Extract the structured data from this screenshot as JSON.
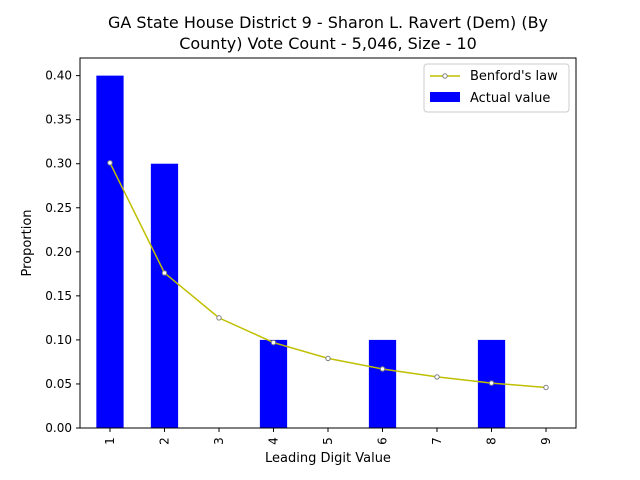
{
  "chart_data": {
    "type": "bar",
    "title_lines": [
      "GA State House District 9 - Sharon L. Ravert (Dem) (By",
      "County) Vote Count - 5,046, Size - 10"
    ],
    "xlabel": "Leading Digit Value",
    "ylabel": "Proportion",
    "categories": [
      "1",
      "2",
      "3",
      "4",
      "5",
      "6",
      "7",
      "8",
      "9"
    ],
    "ylim": [
      0,
      0.42
    ],
    "yticks": [
      "0.00",
      "0.05",
      "0.10",
      "0.15",
      "0.20",
      "0.25",
      "0.30",
      "0.35",
      "0.40"
    ],
    "series": [
      {
        "name": "Actual value",
        "kind": "bar",
        "color": "#0000ff",
        "values": [
          0.4,
          0.3,
          0.0,
          0.1,
          0.0,
          0.1,
          0.0,
          0.1,
          0.0
        ]
      },
      {
        "name": "Benford's law",
        "kind": "line",
        "color": "#bfbf00",
        "marker_edge": "#808080",
        "values": [
          0.301,
          0.176,
          0.125,
          0.097,
          0.079,
          0.067,
          0.058,
          0.051,
          0.046
        ]
      }
    ],
    "legend_position": "top-right",
    "grid": false
  }
}
